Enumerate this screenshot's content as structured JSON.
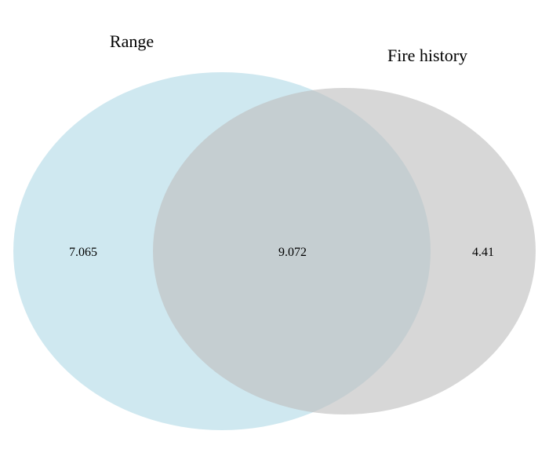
{
  "venn": {
    "sets": [
      {
        "name": "Range",
        "color": "#add8e6"
      },
      {
        "name": "Fire history",
        "color": "#bebebe"
      }
    ],
    "regions": {
      "range_only": "7.065",
      "intersection": "9.072",
      "fire_history_only": "4.41"
    }
  }
}
